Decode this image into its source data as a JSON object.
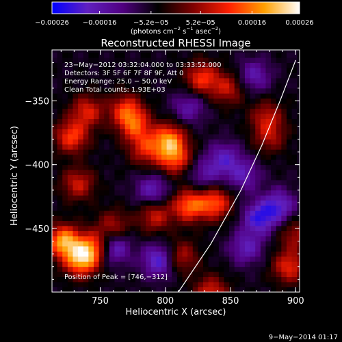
{
  "chart_data": {
    "type": "heatmap",
    "title": "Reconstructed RHESSI Image",
    "xlabel": "Heliocentric X (arcsec)",
    "ylabel": "Heliocentric Y (arcsec)",
    "xlim": [
      713,
      903
    ],
    "ylim": [
      -500,
      -310
    ],
    "xticks": [
      {
        "value": 750,
        "label": "750"
      },
      {
        "value": 800,
        "label": "800"
      },
      {
        "value": 850,
        "label": "850"
      },
      {
        "value": 900,
        "label": "900"
      }
    ],
    "yticks": [
      {
        "value": -350,
        "label": "−350"
      },
      {
        "value": -400,
        "label": "−400"
      },
      {
        "value": -450,
        "label": "−450"
      }
    ],
    "colorbar": {
      "range": [
        -0.00026,
        0.00026
      ],
      "ticks": [
        {
          "value": -0.00026,
          "label": "−0.00026"
        },
        {
          "value": -0.00016,
          "label": "−0.00016"
        },
        {
          "value": -5.2e-05,
          "label": "−5.2e−05"
        },
        {
          "value": 5.2e-05,
          "label": "5.2e−05"
        },
        {
          "value": 0.00016,
          "label": "0.00016"
        },
        {
          "value": 0.00026,
          "label": "0.00026"
        }
      ],
      "unit_base": "(photons cm",
      "unit_exp1": "−2",
      "unit_mid": " s",
      "unit_exp2": "−1",
      "unit_mid2": " asec",
      "unit_exp3": "−2",
      "unit_end": ")",
      "colors": [
        "#0000ff",
        "#6020c0",
        "#500080",
        "#000000",
        "#800000",
        "#ff2000",
        "#ffa000",
        "#ffffff"
      ]
    },
    "annotations": [
      "23−May−2012 03:32:04.000 to 03:33:52.000",
      "Detectors: 3F 5F 6F 7F 8F 9F, Att 0",
      "Energy Range: 25.0 − 50.0 keV",
      "Clean     Total counts: 1.93E+03"
    ],
    "peak_label": "Position of Peak = [746,−312]",
    "limb_curve": [
      [
        810,
        -500
      ],
      [
        835,
        -462
      ],
      [
        858,
        -420
      ],
      [
        874,
        -385
      ],
      [
        888,
        -350
      ],
      [
        900,
        -318
      ]
    ],
    "hot_spots": [
      {
        "x": 722,
        "y": -460,
        "value": 0.00024
      },
      {
        "x": 735,
        "y": -475,
        "value": 0.00022
      },
      {
        "x": 745,
        "y": -465,
        "value": 0.00018
      },
      {
        "x": 728,
        "y": -378,
        "value": 0.00017
      },
      {
        "x": 740,
        "y": -358,
        "value": 0.00014
      },
      {
        "x": 733,
        "y": -415,
        "value": 0.00013
      },
      {
        "x": 770,
        "y": -357,
        "value": 0.00016
      },
      {
        "x": 777,
        "y": -370,
        "value": 0.00015
      },
      {
        "x": 785,
        "y": -388,
        "value": 0.00013
      },
      {
        "x": 803,
        "y": -380,
        "value": 0.0002
      },
      {
        "x": 807,
        "y": -395,
        "value": 0.00017
      },
      {
        "x": 818,
        "y": -432,
        "value": 0.00019
      },
      {
        "x": 838,
        "y": -430,
        "value": 0.00018
      },
      {
        "x": 792,
        "y": -440,
        "value": 0.00013
      },
      {
        "x": 760,
        "y": -448,
        "value": 0.00011
      },
      {
        "x": 828,
        "y": -332,
        "value": 0.00016
      },
      {
        "x": 848,
        "y": -340,
        "value": 0.00012
      },
      {
        "x": 812,
        "y": -472,
        "value": 0.00012
      },
      {
        "x": 835,
        "y": -500,
        "value": 0.00014
      },
      {
        "x": 878,
        "y": -362,
        "value": 0.00011
      },
      {
        "x": 880,
        "y": -378,
        "value": 0.0001
      },
      {
        "x": 895,
        "y": -480,
        "value": 0.00015
      },
      {
        "x": 900,
        "y": -455,
        "value": 0.0001
      }
    ],
    "cold_spots": [
      {
        "x": 760,
        "y": -465,
        "value": -0.00015
      },
      {
        "x": 795,
        "y": -475,
        "value": -0.00016
      },
      {
        "x": 790,
        "y": -420,
        "value": -0.00012
      },
      {
        "x": 845,
        "y": -395,
        "value": -0.00012
      },
      {
        "x": 860,
        "y": -408,
        "value": -0.00011
      },
      {
        "x": 872,
        "y": -442,
        "value": -0.00016
      },
      {
        "x": 862,
        "y": -465,
        "value": -0.00012
      },
      {
        "x": 887,
        "y": -432,
        "value": -0.00014
      },
      {
        "x": 868,
        "y": -330,
        "value": -0.00011
      },
      {
        "x": 818,
        "y": -355,
        "value": -0.0001
      },
      {
        "x": 830,
        "y": -408,
        "value": -9e-05
      }
    ]
  },
  "footer": {
    "timestamp": "9−May−2014 01:17"
  }
}
